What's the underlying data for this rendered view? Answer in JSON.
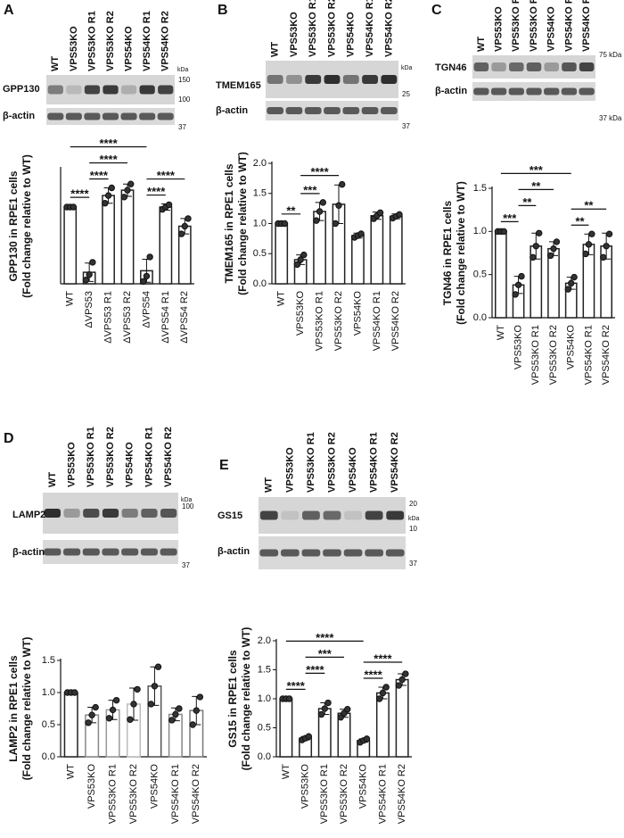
{
  "chart_data": [
    {
      "type": "bar",
      "panel": "A",
      "blot": {
        "lanes": [
          "WT",
          "VPS53KO",
          "VPS53KO R1",
          "VPS53KO R2",
          "VPS54KO",
          "VPS54KO R1",
          "VPS54KO R2"
        ],
        "protein": "GPP130",
        "loading": "β-actin",
        "kda": "kDa",
        "markers": [
          "150",
          "100",
          "37"
        ]
      },
      "ylabel": [
        "GPP130 in RPE1 cells",
        "(Fold change relative to WT)"
      ],
      "categories": [
        "WT",
        "ΔVPS53",
        "ΔVPS53 R1",
        "ΔVPS53 R2",
        "ΔVPS54",
        "ΔVPS54 R1",
        "ΔVPS54 R2"
      ],
      "values": [
        1,
        0.15,
        1.15,
        1.22,
        0.17,
        1.0,
        0.75
      ],
      "errors": [
        0.01,
        0.12,
        0.1,
        0.08,
        0.15,
        0.04,
        0.1
      ],
      "points": [
        [
          1,
          1,
          1
        ],
        [
          0.05,
          0.12,
          0.28
        ],
        [
          1.05,
          1.15,
          1.25
        ],
        [
          1.13,
          1.22,
          1.3
        ],
        [
          0.03,
          0.1,
          0.35
        ],
        [
          0.97,
          1.0,
          1.03
        ],
        [
          0.65,
          0.75,
          0.85
        ]
      ],
      "color": "#222",
      "ylim": [
        0,
        1.5
      ],
      "significance": [
        {
          "label": "****",
          "between": [
            0,
            1
          ]
        },
        {
          "label": "****",
          "between": [
            1,
            2
          ]
        },
        {
          "label": "****",
          "between": [
            1,
            3
          ]
        },
        {
          "label": "****",
          "between": [
            4,
            5
          ]
        },
        {
          "label": "****",
          "between": [
            4,
            6
          ]
        },
        {
          "label": "****",
          "between": [
            0,
            4
          ]
        }
      ]
    },
    {
      "type": "bar",
      "panel": "B",
      "blot": {
        "lanes": [
          "WT",
          "VPS53KO",
          "VPS53KO R1",
          "VPS53KO R2",
          "VPS54KO",
          "VPS54KO R1",
          "VPS54KO R2"
        ],
        "protein": "TMEM165",
        "loading": "β-actin",
        "kda": "kDa",
        "markers": [
          "25",
          "37"
        ]
      },
      "ylabel": [
        "TMEM165 in RPE1 cells",
        "(Fold change relative to WT)"
      ],
      "categories": [
        "WT",
        "VPS53KO",
        "VPS53KO R1",
        "VPS53KO R2",
        "VPS54KO",
        "VPS54KO R1",
        "VPS54KO R2"
      ],
      "values": [
        1,
        0.4,
        1.2,
        1.32,
        0.8,
        1.13,
        1.12
      ],
      "errors": [
        0.01,
        0.08,
        0.15,
        0.32,
        0.04,
        0.06,
        0.04
      ],
      "points": [
        [
          1,
          1,
          1
        ],
        [
          0.32,
          0.4,
          0.48
        ],
        [
          1.05,
          1.2,
          1.35
        ],
        [
          1.0,
          1.3,
          1.65
        ],
        [
          0.77,
          0.8,
          0.83
        ],
        [
          1.08,
          1.13,
          1.18
        ],
        [
          1.09,
          1.12,
          1.15
        ]
      ],
      "color": "#222",
      "ylim": [
        0,
        2
      ],
      "yticks": [
        {
          "value": 0,
          "label": "0.0"
        },
        0.5,
        {
          "value": 1,
          "label": "1.0"
        },
        1.5,
        {
          "value": 2,
          "label": "2.0"
        }
      ],
      "significance": [
        {
          "label": "**",
          "between": [
            0,
            1
          ]
        },
        {
          "label": "***",
          "between": [
            1,
            2
          ]
        },
        {
          "label": "****",
          "between": [
            1,
            3
          ]
        }
      ]
    },
    {
      "type": "bar",
      "panel": "C",
      "blot": {
        "lanes": [
          "WT",
          "VPS53KO",
          "VPS53KO R1",
          "VPS53KO R2",
          "VPS54KO",
          "VPS54KO R1",
          "VPS54KO R2"
        ],
        "protein": "TGN46",
        "loading": "β-actin",
        "markers": [
          "75 kDa",
          "37 kDa"
        ]
      },
      "ylabel": [
        "TGN46 in RPE1 cells",
        "(Fold change relative to WT)"
      ],
      "categories": [
        "WT",
        "VPS53KO",
        "VPS53KO R1",
        "VPS53KO R2",
        "VPS54KO",
        "VPS54KO R1",
        "VPS54KO R2"
      ],
      "values": [
        1,
        0.38,
        0.83,
        0.8,
        0.4,
        0.85,
        0.83
      ],
      "errors": [
        0.01,
        0.1,
        0.15,
        0.08,
        0.07,
        0.12,
        0.15
      ],
      "points": [
        [
          1,
          1,
          1
        ],
        [
          0.27,
          0.38,
          0.48
        ],
        [
          0.7,
          0.83,
          0.98
        ],
        [
          0.72,
          0.8,
          0.88
        ],
        [
          0.33,
          0.4,
          0.47
        ],
        [
          0.74,
          0.85,
          0.97
        ],
        [
          0.7,
          0.83,
          0.97
        ]
      ],
      "color": "#222",
      "ylim": [
        0,
        1.5
      ],
      "yticks": [
        {
          "value": 0,
          "label": "0.0"
        },
        0.5,
        {
          "value": 1,
          "label": "1.0"
        },
        1.5
      ],
      "significance": [
        {
          "label": "***",
          "between": [
            0,
            1
          ]
        },
        {
          "label": "**",
          "between": [
            1,
            2
          ]
        },
        {
          "label": "**",
          "between": [
            1,
            3
          ]
        },
        {
          "label": "**",
          "between": [
            4,
            5
          ]
        },
        {
          "label": "**",
          "between": [
            4,
            6
          ]
        },
        {
          "label": "***",
          "between": [
            0,
            4
          ]
        }
      ]
    },
    {
      "type": "bar",
      "panel": "D",
      "blot": {
        "lanes": [
          "WT",
          "VPS53KO",
          "VPS53KO R1",
          "VPS53KO R2",
          "VPS54KO",
          "VPS54KO R1",
          "VPS54KO R2"
        ],
        "protein": "LAMP2",
        "loading": "β-actin",
        "kda": "kDa",
        "markers": [
          "100",
          "37"
        ]
      },
      "ylabel": [
        "LAMP2 in RPE1 cells",
        "(Fold change relative to WT)"
      ],
      "categories": [
        "WT",
        "VPS53KO",
        "VPS53KO R1",
        "VPS53KO R2",
        "VPS54KO",
        "VPS54KO R1",
        "VPS54KO R2"
      ],
      "values": [
        1,
        0.65,
        0.73,
        0.82,
        1.1,
        0.66,
        0.72
      ],
      "errors": [
        0.01,
        0.12,
        0.15,
        0.25,
        0.3,
        0.1,
        0.22
      ],
      "points": [
        [
          1,
          1,
          1
        ],
        [
          0.53,
          0.65,
          0.77
        ],
        [
          0.6,
          0.73,
          0.88
        ],
        [
          0.58,
          0.82,
          1.05
        ],
        [
          0.82,
          1.1,
          1.4
        ],
        [
          0.57,
          0.66,
          0.75
        ],
        [
          0.5,
          0.72,
          0.93
        ]
      ],
      "colors": [
        "#222",
        "#888",
        "#999",
        "#bbb",
        "#555",
        "#888",
        "#777"
      ],
      "ylim": [
        0,
        1.5
      ],
      "yticks": [
        {
          "value": 0,
          "label": "0.0"
        },
        0.5,
        {
          "value": 1,
          "label": "1.0"
        },
        1.5
      ],
      "significance": []
    },
    {
      "type": "bar",
      "panel": "E",
      "blot": {
        "lanes": [
          "WT",
          "VPS53KO",
          "VPS53KO R1",
          "VPS53KO R2",
          "VPS54KO",
          "VPS54KO R1",
          "VPS54KO R2"
        ],
        "protein": "GS15",
        "loading": "β-actin",
        "kda": "kDa",
        "markers": [
          "20",
          "10",
          "37"
        ]
      },
      "ylabel": [
        "GS15 in RPE1 cells",
        "(Fold change relative to WT)"
      ],
      "categories": [
        "WT",
        "VPS53KO",
        "VPS53KO R1",
        "VPS53KO R2",
        "VPS54KO",
        "VPS54KO R1",
        "VPS54KO R2"
      ],
      "values": [
        1,
        0.32,
        0.83,
        0.75,
        0.28,
        1.1,
        1.33
      ],
      "errors": [
        0.01,
        0.03,
        0.1,
        0.07,
        0.03,
        0.1,
        0.1
      ],
      "points": [
        [
          1,
          1,
          1
        ],
        [
          0.29,
          0.32,
          0.35
        ],
        [
          0.73,
          0.83,
          0.93
        ],
        [
          0.68,
          0.75,
          0.82
        ],
        [
          0.25,
          0.28,
          0.31
        ],
        [
          1.0,
          1.1,
          1.2
        ],
        [
          1.23,
          1.33,
          1.43
        ]
      ],
      "color": "#222",
      "ylim": [
        0,
        2
      ],
      "yticks": [
        {
          "value": 0,
          "label": "0.0"
        },
        0.5,
        {
          "value": 1,
          "label": "1.0"
        },
        1.5,
        {
          "value": 2,
          "label": "2.0"
        }
      ],
      "significance": [
        {
          "label": "****",
          "between": [
            0,
            1
          ]
        },
        {
          "label": "****",
          "between": [
            1,
            2
          ]
        },
        {
          "label": "***",
          "between": [
            1,
            3
          ]
        },
        {
          "label": "****",
          "between": [
            4,
            5
          ]
        },
        {
          "label": "****",
          "between": [
            4,
            6
          ]
        },
        {
          "label": "****",
          "between": [
            0,
            4
          ]
        }
      ]
    }
  ]
}
